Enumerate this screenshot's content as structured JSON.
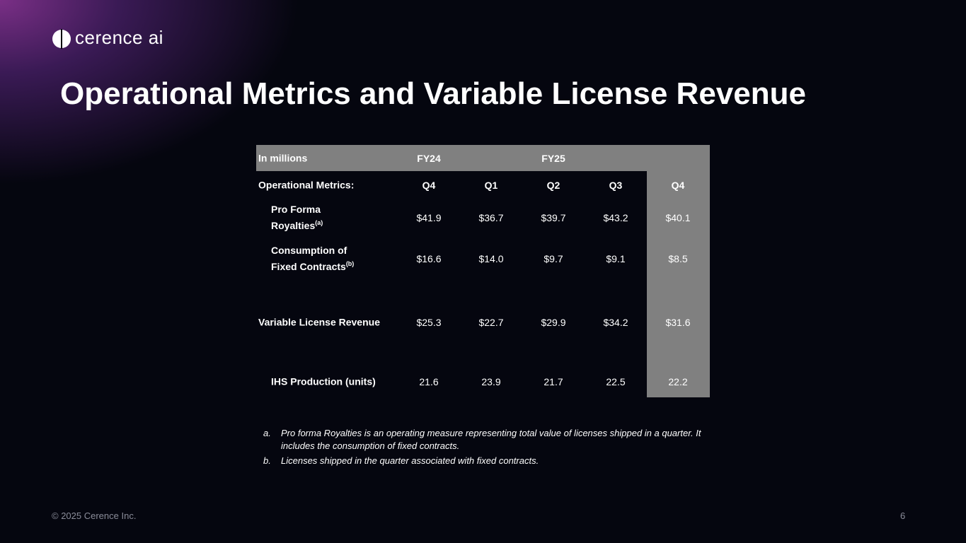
{
  "logo": "cerence ai",
  "title": "Operational Metrics and Variable License Revenue",
  "table": {
    "header": [
      "In millions",
      "FY24",
      "FY25"
    ],
    "subheader": [
      "Operational Metrics:",
      "Q4",
      "Q1",
      "Q2",
      "Q3",
      "Q4"
    ],
    "rows": [
      {
        "label": "Pro Forma\nRoyalties",
        "note": "(a)",
        "cells": [
          "$41.9",
          "$36.7",
          "$39.7",
          "$43.2",
          "$40.1"
        ]
      },
      {
        "label": "Consumption of\n Fixed Contracts",
        "note": "(b)",
        "cells": [
          "$16.6",
          "$14.0",
          "$9.7",
          "$9.1",
          "$8.5"
        ]
      },
      {
        "label": "Variable License Revenue",
        "cells": [
          "$25.3",
          "$22.7",
          "$29.9",
          "$34.2",
          "$31.6"
        ]
      },
      {
        "label": "IHS Production (units)",
        "cells": [
          "21.6",
          "23.9",
          "21.7",
          "22.5",
          "22.2"
        ]
      }
    ]
  },
  "footnotes": [
    {
      "marker": "a.",
      "text": "Pro forma Royalties is an operating measure representing total value of licenses shipped in a quarter. It includes the consumption of fixed contracts."
    },
    {
      "marker": "b.",
      "text": "Licenses shipped in the quarter associated with fixed contracts."
    }
  ],
  "footer": {
    "copyright": "© 2025 Cerence Inc.",
    "page": "6"
  }
}
